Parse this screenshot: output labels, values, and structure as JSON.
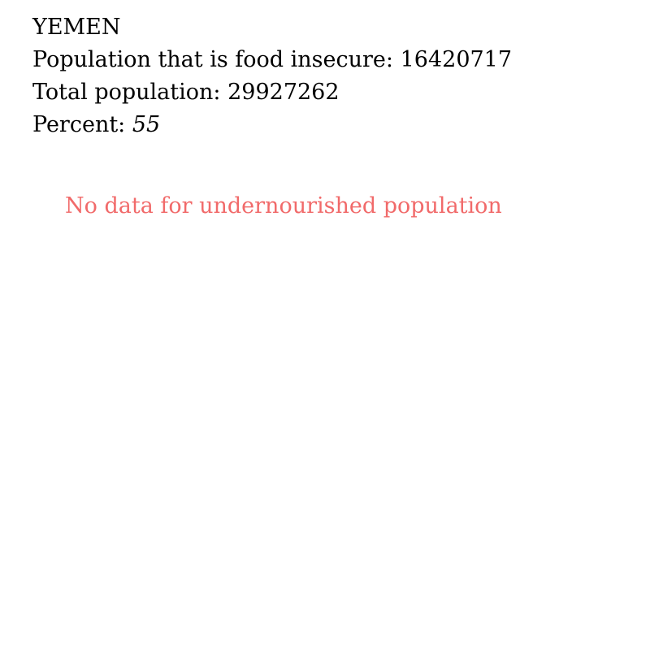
{
  "country": {
    "name": "YEMEN"
  },
  "stats": {
    "food_insecure_label": "Population that is food insecure:",
    "food_insecure_value": "16420717",
    "total_population_label": "Total population:",
    "total_population_value": "29927262",
    "percent_label": "Percent:",
    "percent_value": "55"
  },
  "message": {
    "no_data_text": "No data for undernourished population",
    "color": "#f16a6a"
  }
}
